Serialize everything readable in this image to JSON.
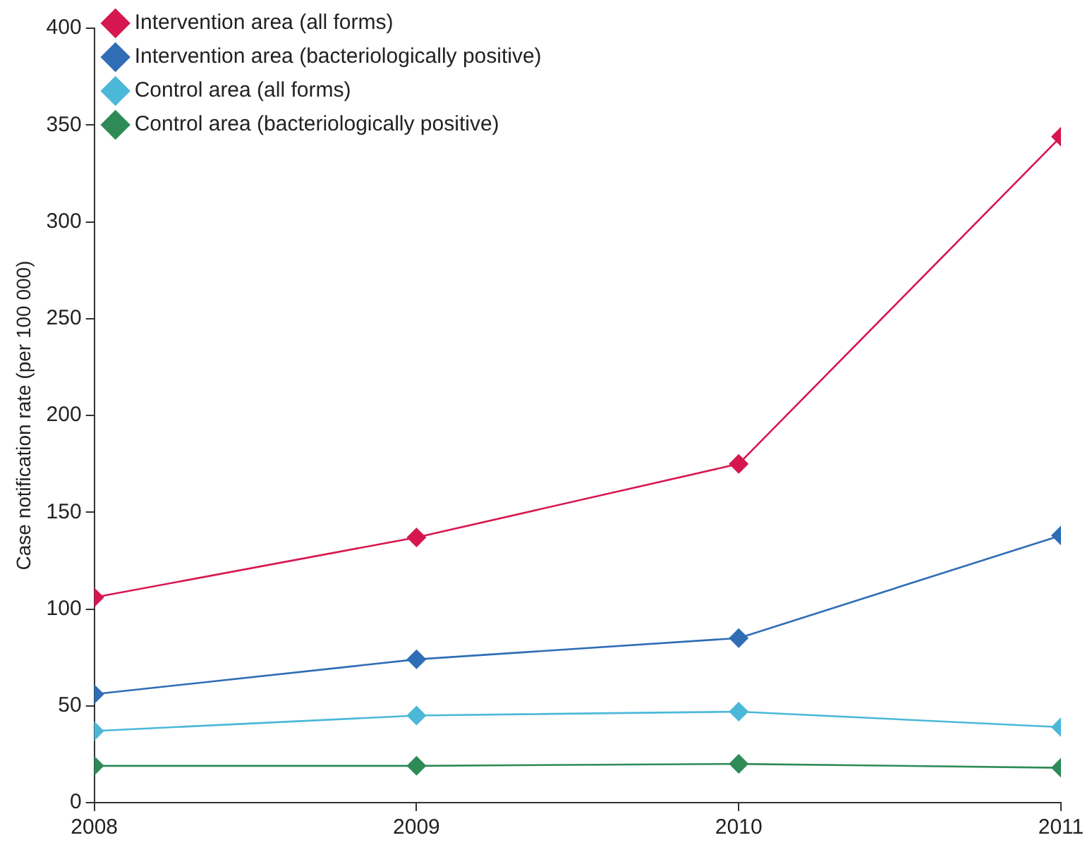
{
  "chart_data": {
    "type": "line",
    "ylabel": "Case notification rate (per 100 000)",
    "x": [
      2008,
      2009,
      2010,
      2011
    ],
    "xlim": [
      2008,
      2011
    ],
    "xticks": [
      2008,
      2009,
      2010,
      2011
    ],
    "ylim": [
      0,
      400
    ],
    "yticks": [
      0,
      50,
      100,
      150,
      200,
      250,
      300,
      350,
      400
    ],
    "grid": false,
    "legend": "top left",
    "marker": "diamond",
    "line_style": "solid",
    "series": [
      {
        "name": "Intervention area (all forms)",
        "color": "#d6174f",
        "values": [
          106,
          137,
          175,
          344
        ]
      },
      {
        "name": "Intervention area (bacteriologically positive)",
        "color": "#2f6db5",
        "values": [
          56,
          74,
          85,
          138
        ]
      },
      {
        "name": "Control area (all forms)",
        "color": "#4cb8d8",
        "values": [
          37,
          45,
          47,
          39
        ]
      },
      {
        "name": "Control area (bacteriologically positive)",
        "color": "#2e8b57",
        "values": [
          19,
          19,
          20,
          18
        ]
      }
    ]
  }
}
